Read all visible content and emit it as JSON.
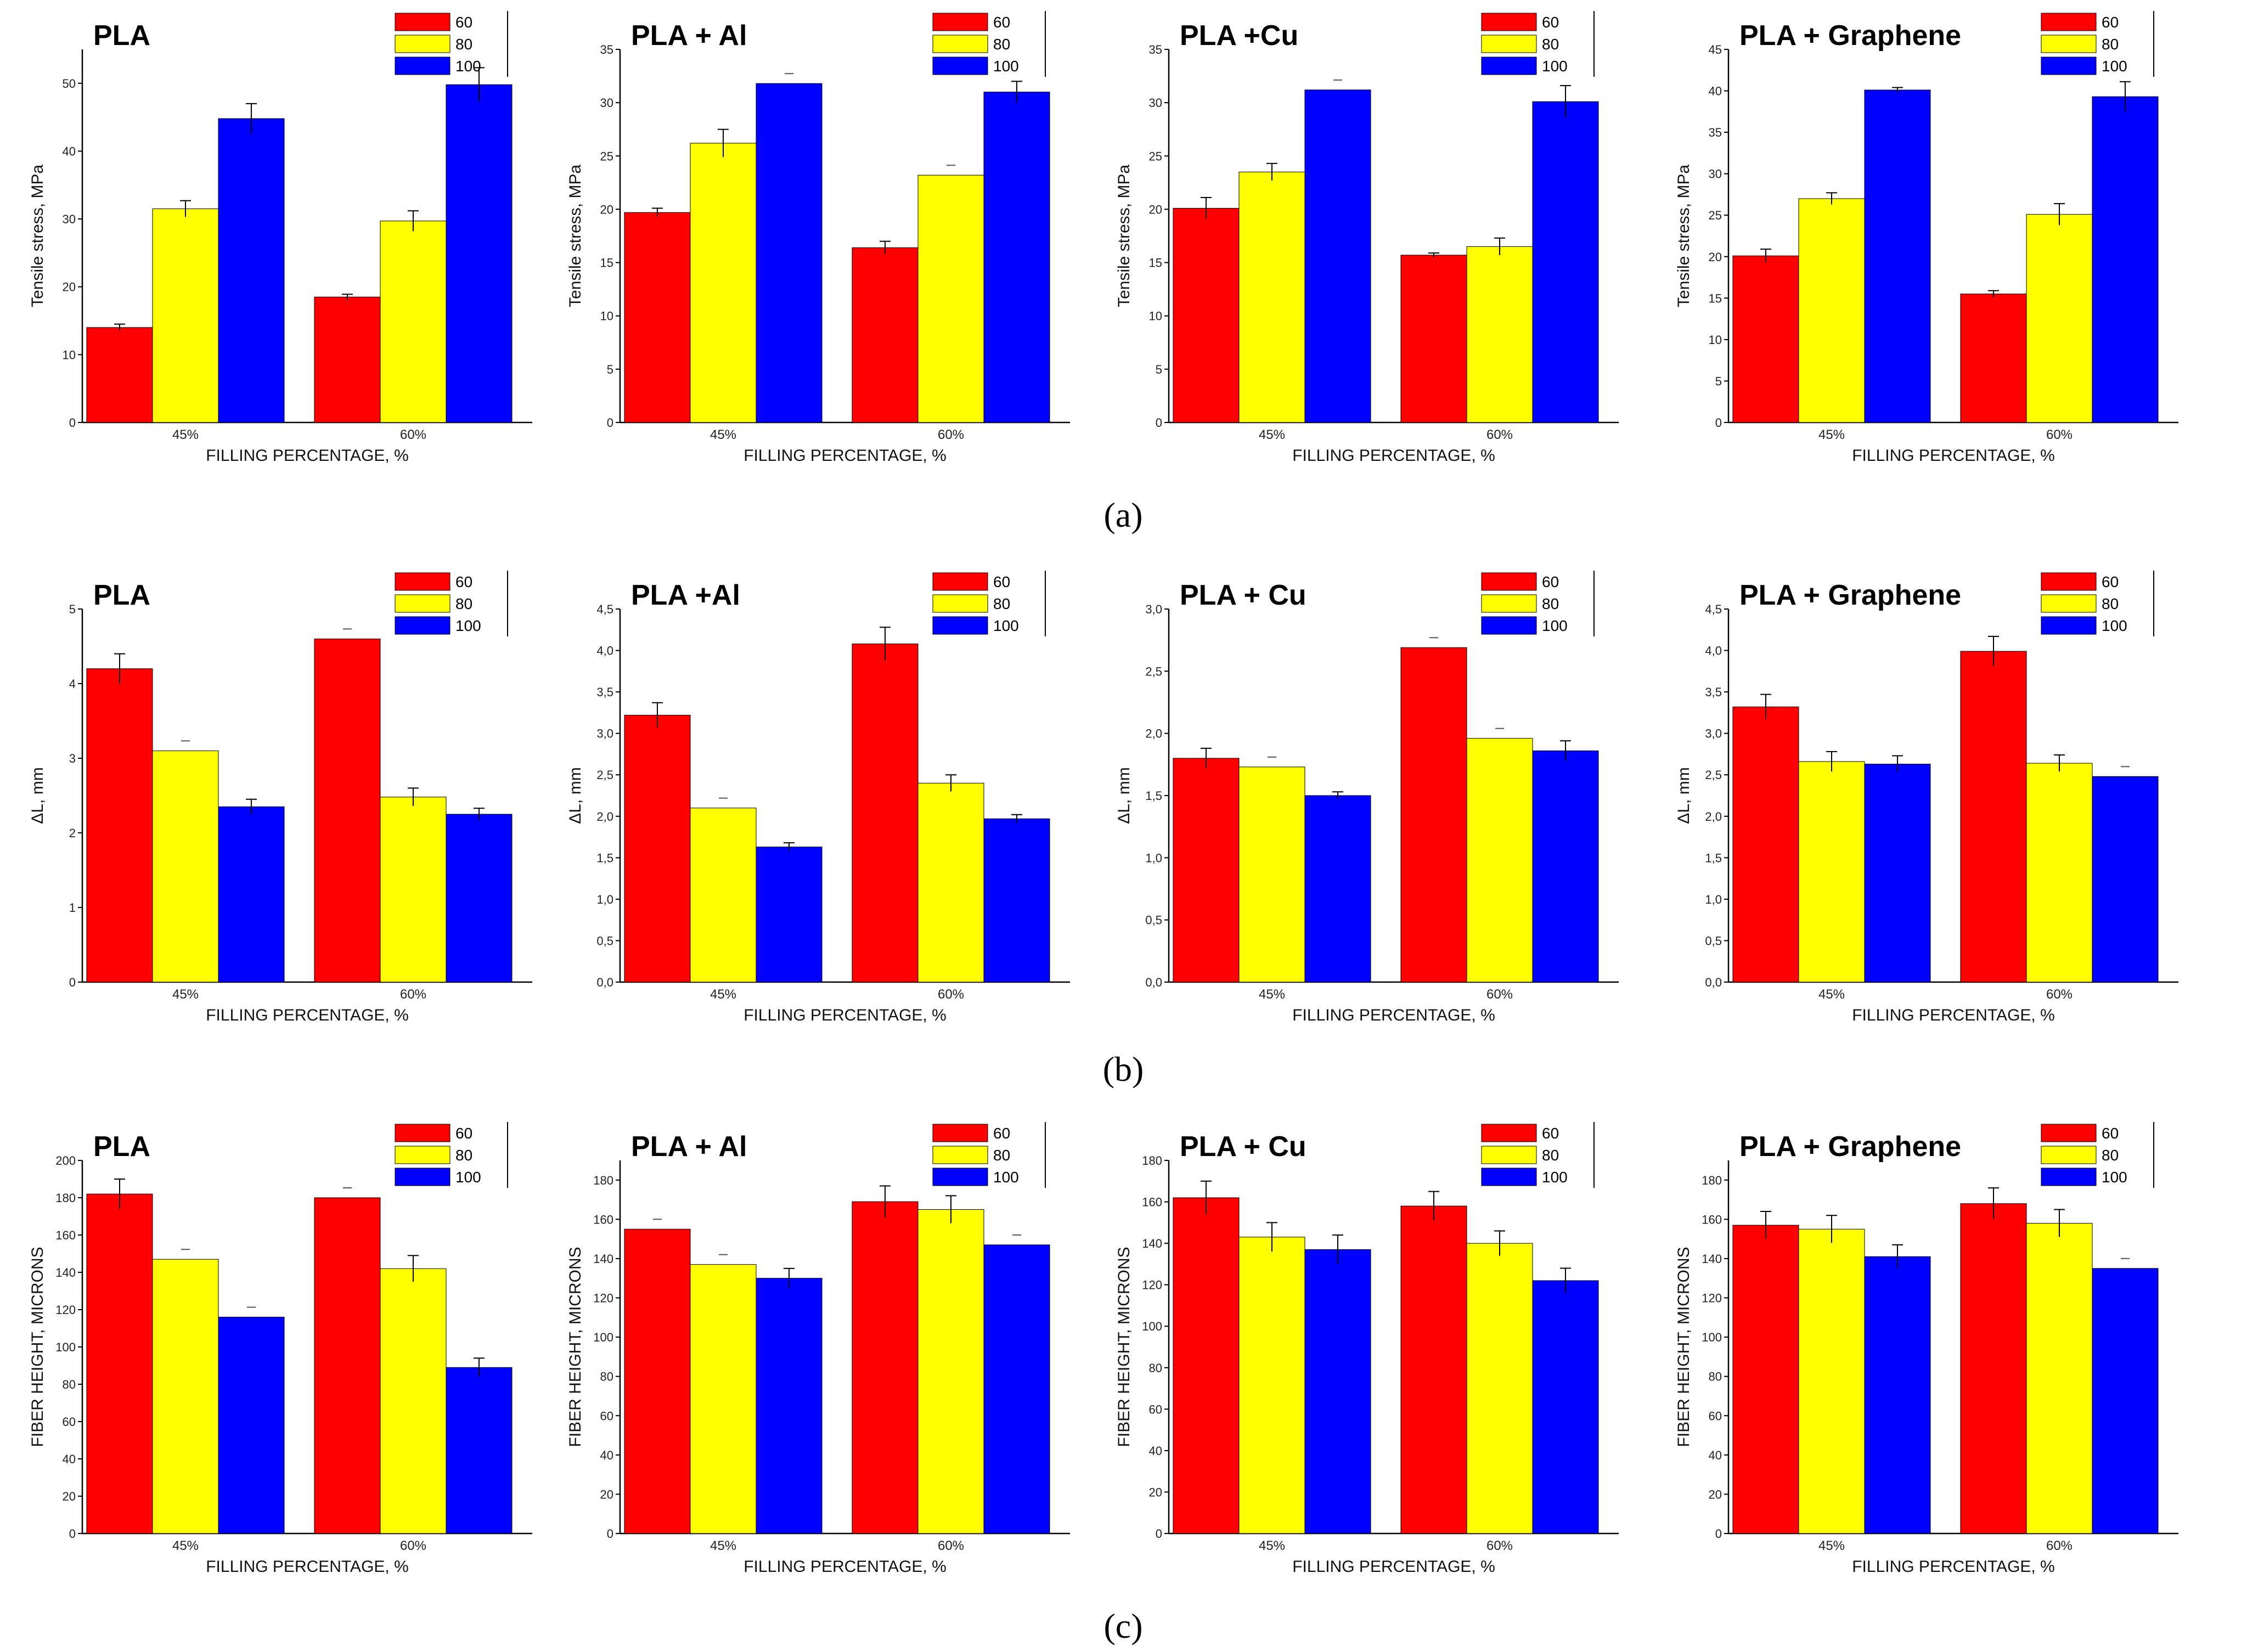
{
  "colors": {
    "s60": "#ff0000",
    "s80": "#ffff00",
    "s100": "#0000ff",
    "axis": "#000000"
  },
  "panel_labels": [
    "(a)",
    "(b)",
    "(c)"
  ],
  "chart_data": [
    {
      "type": "bar",
      "row": 0,
      "col": 0,
      "title": "PLA",
      "xlabel": "FILLING PERCENTAGE, %",
      "ylabel": "Tensile stress, MPa",
      "categories": [
        "45%",
        "60%"
      ],
      "ylim": [
        0,
        55
      ],
      "yticks": [
        0,
        10,
        20,
        30,
        40,
        50
      ],
      "ytick_labels": [
        "0",
        "10",
        "20",
        "30",
        "40",
        "50"
      ],
      "series": [
        {
          "name": "60",
          "values": [
            14,
            18.5
          ],
          "errors": [
            0.5,
            0.4
          ]
        },
        {
          "name": "80",
          "values": [
            31.5,
            29.7
          ],
          "errors": [
            1.2,
            1.5
          ]
        },
        {
          "name": "100",
          "values": [
            44.8,
            49.8
          ],
          "errors": [
            2.2,
            2.5
          ]
        }
      ]
    },
    {
      "type": "bar",
      "row": 0,
      "col": 1,
      "title": "PLA + Al",
      "xlabel": "FILLING PERCENTAGE, %",
      "ylabel": "Tensile stress, MPa",
      "categories": [
        "45%",
        "60%"
      ],
      "ylim": [
        0,
        35
      ],
      "yticks": [
        0,
        5,
        10,
        15,
        20,
        25,
        30,
        35
      ],
      "ytick_labels": [
        "0",
        "5",
        "10",
        "15",
        "20",
        "25",
        "30",
        "35"
      ],
      "series": [
        {
          "name": "60",
          "values": [
            19.7,
            16.4
          ],
          "errors": [
            0.4,
            0.6
          ]
        },
        {
          "name": "80",
          "values": [
            26.2,
            23.2
          ],
          "errors": [
            1.3,
            0
          ]
        },
        {
          "name": "100",
          "values": [
            31.8,
            31
          ],
          "errors": [
            0,
            1
          ]
        }
      ]
    },
    {
      "type": "bar",
      "row": 0,
      "col": 2,
      "title": "PLA +Cu",
      "xlabel": "FILLING PERCENTAGE, %",
      "ylabel": "Tensile stress, MPa",
      "categories": [
        "45%",
        "60%"
      ],
      "ylim": [
        0,
        35
      ],
      "yticks": [
        0,
        5,
        10,
        15,
        20,
        25,
        30,
        35
      ],
      "ytick_labels": [
        "0",
        "5",
        "10",
        "15",
        "20",
        "25",
        "30",
        "35"
      ],
      "series": [
        {
          "name": "60",
          "values": [
            20.1,
            15.7
          ],
          "errors": [
            1,
            0.2
          ]
        },
        {
          "name": "80",
          "values": [
            23.5,
            16.5
          ],
          "errors": [
            0.8,
            0.8
          ]
        },
        {
          "name": "100",
          "values": [
            31.2,
            30.1
          ],
          "errors": [
            0,
            1.5
          ]
        }
      ]
    },
    {
      "type": "bar",
      "row": 0,
      "col": 3,
      "title": "PLA + Graphene",
      "xlabel": "FILLING PERCENTAGE, %",
      "ylabel": "Tensile stress, MPa",
      "categories": [
        "45%",
        "60%"
      ],
      "ylim": [
        0,
        45
      ],
      "yticks": [
        0,
        5,
        10,
        15,
        20,
        25,
        30,
        35,
        40,
        45
      ],
      "ytick_labels": [
        "0",
        "5",
        "10",
        "15",
        "20",
        "25",
        "30",
        "35",
        "40",
        "45"
      ],
      "series": [
        {
          "name": "60",
          "values": [
            20.1,
            15.5
          ],
          "errors": [
            0.8,
            0.4
          ]
        },
        {
          "name": "80",
          "values": [
            27,
            25.1
          ],
          "errors": [
            0.7,
            1.3
          ]
        },
        {
          "name": "100",
          "values": [
            40.1,
            39.3
          ],
          "errors": [
            0.3,
            1.8
          ]
        }
      ]
    },
    {
      "type": "bar",
      "row": 1,
      "col": 0,
      "title": "PLA",
      "xlabel": "FILLING PERCENTAGE, %",
      "ylabel": "ΔL, mm",
      "categories": [
        "45%",
        "60%"
      ],
      "ylim": [
        0,
        5
      ],
      "yticks": [
        0,
        1,
        2,
        3,
        4,
        5
      ],
      "ytick_labels": [
        "0",
        "1",
        "2",
        "3",
        "4",
        "5"
      ],
      "series": [
        {
          "name": "60",
          "values": [
            4.2,
            4.6
          ],
          "errors": [
            0.2,
            0
          ]
        },
        {
          "name": "80",
          "values": [
            3.1,
            2.48
          ],
          "errors": [
            0,
            0.12
          ]
        },
        {
          "name": "100",
          "values": [
            2.35,
            2.25
          ],
          "errors": [
            0.1,
            0.08
          ]
        }
      ]
    },
    {
      "type": "bar",
      "row": 1,
      "col": 1,
      "title": "PLA +Al",
      "xlabel": "FILLING PERCENTAGE, %",
      "ylabel": "ΔL, mm",
      "categories": [
        "45%",
        "60%"
      ],
      "ylim": [
        0,
        4.5
      ],
      "yticks": [
        0,
        0.5,
        1,
        1.5,
        2,
        2.5,
        3,
        3.5,
        4,
        4.5
      ],
      "ytick_labels": [
        "0,0",
        "0,5",
        "1,0",
        "1,5",
        "2,0",
        "2,5",
        "3,0",
        "3,5",
        "4,0",
        "4,5"
      ],
      "series": [
        {
          "name": "60",
          "values": [
            3.22,
            4.08
          ],
          "errors": [
            0.15,
            0.2
          ]
        },
        {
          "name": "80",
          "values": [
            2.1,
            2.4
          ],
          "errors": [
            0,
            0.1
          ]
        },
        {
          "name": "100",
          "values": [
            1.63,
            1.97
          ],
          "errors": [
            0.05,
            0.05
          ]
        }
      ]
    },
    {
      "type": "bar",
      "row": 1,
      "col": 2,
      "title": "PLA + Cu",
      "xlabel": "FILLING PERCENTAGE, %",
      "ylabel": "ΔL, mm",
      "categories": [
        "45%",
        "60%"
      ],
      "ylim": [
        0,
        3
      ],
      "yticks": [
        0,
        0.5,
        1,
        1.5,
        2,
        2.5,
        3
      ],
      "ytick_labels": [
        "0,0",
        "0,5",
        "1,0",
        "1,5",
        "2,0",
        "2,5",
        "3,0"
      ],
      "series": [
        {
          "name": "60",
          "values": [
            1.8,
            2.69
          ],
          "errors": [
            0.08,
            0
          ]
        },
        {
          "name": "80",
          "values": [
            1.73,
            1.96
          ],
          "errors": [
            0,
            0
          ]
        },
        {
          "name": "100",
          "values": [
            1.5,
            1.86
          ],
          "errors": [
            0.03,
            0.08
          ]
        }
      ]
    },
    {
      "type": "bar",
      "row": 1,
      "col": 3,
      "title": "PLA + Graphene",
      "xlabel": "FILLING PERCENTAGE, %",
      "ylabel": "ΔL, mm",
      "categories": [
        "45%",
        "60%"
      ],
      "ylim": [
        0,
        4.5
      ],
      "yticks": [
        0,
        0.5,
        1,
        1.5,
        2,
        2.5,
        3,
        3.5,
        4,
        4.5
      ],
      "ytick_labels": [
        "0,0",
        "0,5",
        "1,0",
        "1,5",
        "2,0",
        "2,5",
        "3,0",
        "3,5",
        "4,0",
        "4,5"
      ],
      "series": [
        {
          "name": "60",
          "values": [
            3.32,
            3.99
          ],
          "errors": [
            0.15,
            0.18
          ]
        },
        {
          "name": "80",
          "values": [
            2.66,
            2.64
          ],
          "errors": [
            0.12,
            0.1
          ]
        },
        {
          "name": "100",
          "values": [
            2.63,
            2.48
          ],
          "errors": [
            0.1,
            0
          ]
        }
      ]
    },
    {
      "type": "bar",
      "row": 2,
      "col": 0,
      "title": "PLA",
      "xlabel": "FILLING PERCENTAGE, %",
      "ylabel": "FIBER HEIGHT, MICRONS",
      "categories": [
        "45%",
        "60%"
      ],
      "ylim": [
        0,
        200
      ],
      "yticks": [
        0,
        20,
        40,
        60,
        80,
        100,
        120,
        140,
        160,
        180,
        200
      ],
      "ytick_labels": [
        "0",
        "20",
        "40",
        "60",
        "80",
        "100",
        "120",
        "140",
        "160",
        "180",
        "200"
      ],
      "series": [
        {
          "name": "60",
          "values": [
            182,
            180
          ],
          "errors": [
            8,
            0
          ]
        },
        {
          "name": "80",
          "values": [
            147,
            142
          ],
          "errors": [
            0,
            7
          ]
        },
        {
          "name": "100",
          "values": [
            116,
            89
          ],
          "errors": [
            0,
            5
          ]
        }
      ]
    },
    {
      "type": "bar",
      "row": 2,
      "col": 1,
      "title": "PLA + Al",
      "xlabel": "FILLING PERCENTAGE, %",
      "ylabel": "FIBER HEIGHT, MICRONS",
      "categories": [
        "45%",
        "60%"
      ],
      "ylim": [
        0,
        190
      ],
      "yticks": [
        0,
        20,
        40,
        60,
        80,
        100,
        120,
        140,
        160,
        180
      ],
      "ytick_labels": [
        "0",
        "20",
        "40",
        "60",
        "80",
        "100",
        "120",
        "140",
        "160",
        "180"
      ],
      "series": [
        {
          "name": "60",
          "values": [
            155,
            169
          ],
          "errors": [
            0,
            8
          ]
        },
        {
          "name": "80",
          "values": [
            137,
            165
          ],
          "errors": [
            0,
            7
          ]
        },
        {
          "name": "100",
          "values": [
            130,
            147
          ],
          "errors": [
            5,
            0
          ]
        }
      ]
    },
    {
      "type": "bar",
      "row": 2,
      "col": 2,
      "title": "PLA + Cu",
      "xlabel": "FILLING PERCENTAGE, %",
      "ylabel": "FIBER HEIGHT, MICRONS",
      "categories": [
        "45%",
        "60%"
      ],
      "ylim": [
        0,
        180
      ],
      "yticks": [
        0,
        20,
        40,
        60,
        80,
        100,
        120,
        140,
        160,
        180
      ],
      "ytick_labels": [
        "0",
        "20",
        "40",
        "60",
        "80",
        "100",
        "120",
        "140",
        "160",
        "180"
      ],
      "series": [
        {
          "name": "60",
          "values": [
            162,
            158
          ],
          "errors": [
            8,
            7
          ]
        },
        {
          "name": "80",
          "values": [
            143,
            140
          ],
          "errors": [
            7,
            6
          ]
        },
        {
          "name": "100",
          "values": [
            137,
            122
          ],
          "errors": [
            7,
            6
          ]
        }
      ]
    },
    {
      "type": "bar",
      "row": 2,
      "col": 3,
      "title": "PLA + Graphene",
      "xlabel": "FILLING PERCENTAGE, %",
      "ylabel": "FIBER HEIGHT, MICRONS",
      "categories": [
        "45%",
        "60%"
      ],
      "ylim": [
        0,
        190
      ],
      "yticks": [
        0,
        20,
        40,
        60,
        80,
        100,
        120,
        140,
        160,
        180
      ],
      "ytick_labels": [
        "0",
        "20",
        "40",
        "60",
        "80",
        "100",
        "120",
        "140",
        "160",
        "180"
      ],
      "series": [
        {
          "name": "60",
          "values": [
            157,
            168
          ],
          "errors": [
            7,
            8
          ]
        },
        {
          "name": "80",
          "values": [
            155,
            158
          ],
          "errors": [
            7,
            7
          ]
        },
        {
          "name": "100",
          "values": [
            141,
            135
          ],
          "errors": [
            6,
            0
          ]
        }
      ]
    }
  ]
}
